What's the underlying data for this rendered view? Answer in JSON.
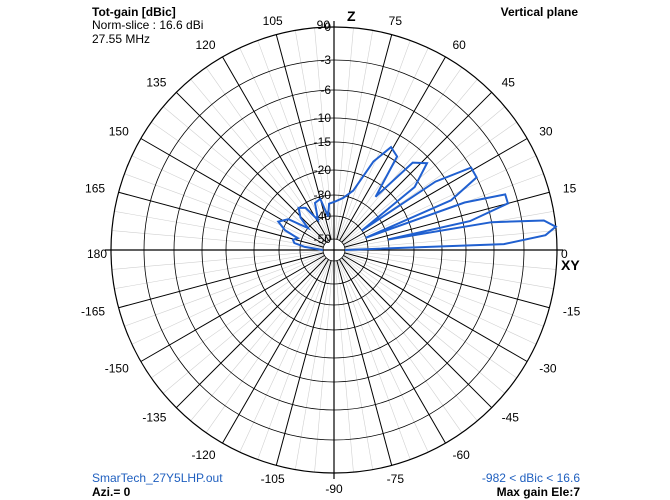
{
  "header": {
    "title": "Tot-gain [dBic]",
    "norm_slice": "Norm-slice : 16.6 dBi",
    "frequency": "27.55 MHz",
    "plane": "Vertical plane"
  },
  "footer": {
    "filename": "SmarTech_27Y5LHP.out",
    "azimuth": "Azi.= 0",
    "range": "-982 < dBic < 16.6",
    "max_gain": "Max gain Ele:7"
  },
  "axis_names": {
    "z": "Z",
    "xy": "XY"
  },
  "colors": {
    "trace": "#2060d0",
    "grid": "#d0d0d0",
    "ring": "#000000"
  },
  "chart_data": {
    "type": "polar",
    "angle_unit": "degrees elevation",
    "angle_labels": [
      "0",
      "15",
      "30",
      "45",
      "60",
      "75",
      "90",
      "105",
      "120",
      "135",
      "150",
      "165",
      "180",
      "-165",
      "-150",
      "-135",
      "-120",
      "-105",
      "-90",
      "-75",
      "-60",
      "-45",
      "-30",
      "-15"
    ],
    "angle_values": [
      0,
      15,
      30,
      45,
      60,
      75,
      90,
      105,
      120,
      135,
      150,
      165,
      180,
      -165,
      -150,
      -135,
      -120,
      -105,
      -90,
      -75,
      -60,
      -45,
      -30,
      -15
    ],
    "ring_labels": [
      "0",
      "-3",
      "-6",
      "-10",
      "-15",
      "-20",
      "-30",
      "-40",
      "-50"
    ],
    "ring_values_db": [
      0,
      -3,
      -6,
      -10,
      -15,
      -20,
      -30,
      -40,
      -50
    ],
    "grid": true,
    "series": [
      {
        "pattern": [
          {
            "angle": 0,
            "db": -50
          },
          {
            "angle": 2,
            "db": -5
          },
          {
            "angle": 4,
            "db": -1
          },
          {
            "angle": 6,
            "db": 0
          },
          {
            "angle": 8,
            "db": -1
          },
          {
            "angle": 10,
            "db": -6
          },
          {
            "angle": 11,
            "db": -30
          },
          {
            "angle": 12,
            "db": -9
          },
          {
            "angle": 15,
            "db": -4
          },
          {
            "angle": 18,
            "db": -4
          },
          {
            "angle": 20,
            "db": -9
          },
          {
            "angle": 21,
            "db": -40
          },
          {
            "angle": 23,
            "db": -11
          },
          {
            "angle": 27,
            "db": -6
          },
          {
            "angle": 31,
            "db": -6
          },
          {
            "angle": 34,
            "db": -12
          },
          {
            "angle": 35,
            "db": -40
          },
          {
            "angle": 38,
            "db": -16
          },
          {
            "angle": 43,
            "db": -11
          },
          {
            "angle": 48,
            "db": -13
          },
          {
            "angle": 52,
            "db": -25
          },
          {
            "angle": 56,
            "db": -14
          },
          {
            "angle": 61,
            "db": -13
          },
          {
            "angle": 66,
            "db": -17
          },
          {
            "angle": 72,
            "db": -27
          },
          {
            "angle": 80,
            "db": -31
          },
          {
            "angle": 88,
            "db": -33
          },
          {
            "angle": 96,
            "db": -34
          },
          {
            "angle": 100,
            "db": -40
          },
          {
            "angle": 105,
            "db": -31
          },
          {
            "angle": 112,
            "db": -32
          },
          {
            "angle": 118,
            "db": -40
          },
          {
            "angle": 124,
            "db": -32
          },
          {
            "angle": 130,
            "db": -30
          },
          {
            "angle": 136,
            "db": -34
          },
          {
            "angle": 140,
            "db": -40
          },
          {
            "angle": 146,
            "db": -30
          },
          {
            "angle": 153,
            "db": -27
          },
          {
            "angle": 158,
            "db": -31
          },
          {
            "angle": 162,
            "db": -38
          },
          {
            "angle": 166,
            "db": -36
          },
          {
            "angle": 170,
            "db": -37
          },
          {
            "angle": 174,
            "db": -42
          },
          {
            "angle": 180,
            "db": -50
          }
        ]
      }
    ]
  }
}
